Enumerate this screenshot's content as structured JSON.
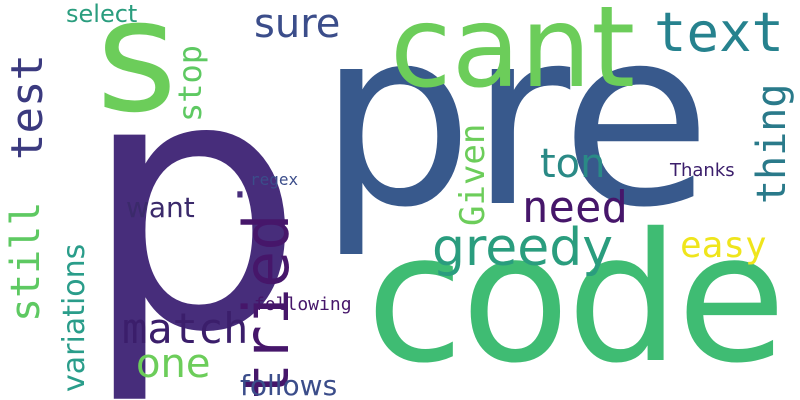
{
  "words": {
    "p": {
      "text": "p",
      "color": "#472d7b"
    },
    "pre": {
      "text": "pre",
      "color": "#38598c"
    },
    "code": {
      "text": "code",
      "color": "#3fbc73"
    },
    "cant": {
      "text": "cant",
      "color": "#6ccd5a"
    },
    "s": {
      "text": "s",
      "color": "#6ccd5a"
    },
    "tried": {
      "text": "tried",
      "color": "#46166a"
    },
    "text": {
      "text": "text",
      "color": "#26828e"
    },
    "greedy": {
      "text": "greedy",
      "color": "#2a9d7e"
    },
    "test": {
      "text": "test",
      "color": "#3b3a7f"
    },
    "still": {
      "text": "still",
      "color": "#5ec962"
    },
    "variations": {
      "text": "variations",
      "color": "#2a9d8a"
    },
    "match": {
      "text": "match",
      "color": "#3b1e6b"
    },
    "need": {
      "text": "need",
      "color": "#46166a"
    },
    "ton": {
      "text": "ton",
      "color": "#2a8a86"
    },
    "given": {
      "text": "Given",
      "color": "#6ccd5a"
    },
    "easy": {
      "text": "easy",
      "color": "#efe51c"
    },
    "thing": {
      "text": "thing",
      "color": "#2a7a8a"
    },
    "stop": {
      "text": "stop",
      "color": "#5ec962"
    },
    "sure": {
      "text": "sure",
      "color": "#3b4d8a"
    },
    "select": {
      "text": "select",
      "color": "#2a9d7e"
    },
    "one": {
      "text": "one",
      "color": "#6ccd5a"
    },
    "want": {
      "text": "want",
      "color": "#3b2a6b"
    },
    "follows": {
      "text": "follows",
      "color": "#3b4d8a"
    },
    "following": {
      "text": "following",
      "color": "#46166a"
    },
    "regex": {
      "text": "regex",
      "color": "#3b4d8a"
    },
    "thanks": {
      "text": "Thanks",
      "color": "#3b1e6b"
    },
    "dot": {
      "text": "·",
      "color": "#472d7b"
    }
  }
}
